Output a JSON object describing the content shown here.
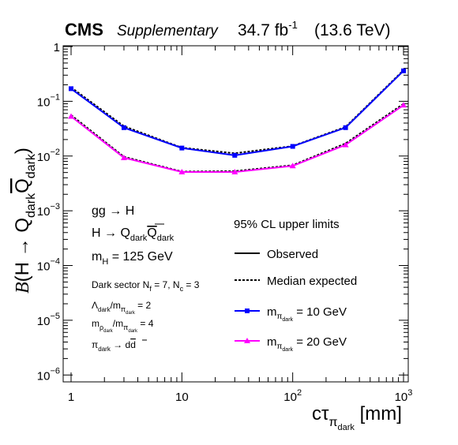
{
  "header": {
    "experiment": "CMS",
    "tag": "Supplementary",
    "lumi": "34.7 fb",
    "lumi_exp": "-1",
    "energy": "(13.6 TeV)"
  },
  "info": {
    "process": "gg → H",
    "decay_pre": "H → Q",
    "decay_sub1": "dark",
    "decay_q": "Q",
    "decay_sub2": "dark",
    "mass_pre": "m",
    "mass_sub": "H",
    "mass_val": " = 125 GeV",
    "sector_pre": "Dark sector N",
    "sector_sub1": "f",
    "sector_mid": " = 7,  N",
    "sector_sub2": "c",
    "sector_val": " = 3",
    "ratio1_a": "Λ",
    "ratio1_asub": "dark",
    "ratio1_b": "/m",
    "ratio1_bsub": "π",
    "ratio1_bsubsub": "dark",
    "ratio1_val": " = 2",
    "ratio2_a": "m",
    "ratio2_asub": "ρ",
    "ratio2_asubsub": "dark",
    "ratio2_b": "/m",
    "ratio2_bsub": "π",
    "ratio2_bsubsub": "dark",
    "ratio2_val": " = 4",
    "decay2_pre": "π",
    "decay2_sub": "dark",
    "decay2_post": " → d",
    "decay2_dbar": "d"
  },
  "legend_text": {
    "title": "95% CL upper limits",
    "observed": "Observed",
    "expected": "Median expected",
    "s1_pre": "m",
    "s1_sub": "π",
    "s1_subsub": "dark",
    "s1_val": " = 10 GeV",
    "s2_pre": "m",
    "s2_sub": "π",
    "s2_subsub": "dark",
    "s2_val": " = 20 GeV"
  },
  "axis_text": {
    "y_B": "B",
    "y_mid": "(H → Q",
    "y_sub1": "dark",
    "y_q": "Q",
    "y_sub2": "dark",
    "y_close": ")",
    "x_main": "cτ",
    "x_sub": "π",
    "x_subsub": "dark",
    "x_unit": " [mm]"
  },
  "chart_data": {
    "type": "line",
    "xscale": "log",
    "yscale": "log",
    "xlim": [
      0.85,
      1100
    ],
    "ylim": [
      8e-07,
      1
    ],
    "x_ticks": [
      {
        "value": 1,
        "label": "1"
      },
      {
        "value": 10,
        "label": "10"
      },
      {
        "value": 100,
        "label": "10",
        "sup": "2"
      },
      {
        "value": 1000,
        "label": "10",
        "sup": "3"
      }
    ],
    "y_ticks": [
      {
        "value": 1,
        "label": "1",
        "sup": ""
      },
      {
        "value": 0.1,
        "label": "10",
        "sup": "−1"
      },
      {
        "value": 0.01,
        "label": "10",
        "sup": "−2"
      },
      {
        "value": 0.001,
        "label": "10",
        "sup": "−3"
      },
      {
        "value": 0.0001,
        "label": "10",
        "sup": "−4"
      },
      {
        "value": 1e-05,
        "label": "10",
        "sup": "−5"
      },
      {
        "value": 1e-06,
        "label": "10",
        "sup": "−6"
      }
    ],
    "series": [
      {
        "name": "m_π_dark = 10 GeV",
        "color": "#0000ff",
        "marker": "square",
        "x": [
          1,
          3,
          10,
          30,
          100,
          300,
          1000
        ],
        "observed": [
          0.17,
          0.033,
          0.014,
          0.0103,
          0.015,
          0.033,
          0.36
        ],
        "expected": [
          0.18,
          0.035,
          0.0142,
          0.0112,
          0.0152,
          0.034,
          0.37
        ]
      },
      {
        "name": "m_π_dark = 20 GeV",
        "color": "#ff00ff",
        "marker": "triangle",
        "x": [
          1,
          3,
          10,
          30,
          100,
          300,
          1000
        ],
        "observed": [
          0.053,
          0.0093,
          0.0051,
          0.0051,
          0.0066,
          0.016,
          0.085
        ],
        "expected": [
          0.056,
          0.0097,
          0.0052,
          0.0053,
          0.0068,
          0.017,
          0.09
        ]
      }
    ],
    "legend_position": "right",
    "grid": false
  }
}
